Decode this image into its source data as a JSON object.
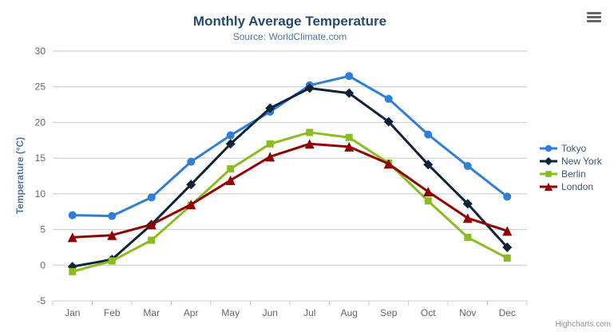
{
  "chart_data": {
    "type": "line",
    "title": "Monthly Average Temperature",
    "subtitle": "Source: WorldClimate.com",
    "xlabel": "",
    "ylabel": "Temperature (°C)",
    "ylim": [
      -5,
      30
    ],
    "ytick_step": 5,
    "grid": true,
    "legend_position": "right",
    "categories": [
      "Jan",
      "Feb",
      "Mar",
      "Apr",
      "May",
      "Jun",
      "Jul",
      "Aug",
      "Sep",
      "Oct",
      "Nov",
      "Dec"
    ],
    "series": [
      {
        "name": "Tokyo",
        "color": "#2f7ed8",
        "marker": "circle",
        "values": [
          7.0,
          6.9,
          9.5,
          14.5,
          18.2,
          21.5,
          25.2,
          26.5,
          23.3,
          18.3,
          13.9,
          9.6
        ]
      },
      {
        "name": "New York",
        "color": "#0d233a",
        "marker": "diamond",
        "values": [
          -0.2,
          0.8,
          5.7,
          11.3,
          17.0,
          22.0,
          24.8,
          24.1,
          20.1,
          14.1,
          8.6,
          2.5
        ]
      },
      {
        "name": "Berlin",
        "color": "#8bbc21",
        "marker": "square",
        "values": [
          -0.9,
          0.6,
          3.5,
          8.4,
          13.5,
          17.0,
          18.6,
          17.9,
          14.3,
          9.0,
          3.9,
          1.0
        ]
      },
      {
        "name": "London",
        "color": "#910000",
        "marker": "triangle",
        "values": [
          3.9,
          4.2,
          5.7,
          8.5,
          11.9,
          15.2,
          17.0,
          16.6,
          14.2,
          10.3,
          6.6,
          4.8
        ]
      }
    ]
  },
  "colors": {
    "background": "#ffffff",
    "title": "#274b6d",
    "subtitle": "#4d759e",
    "axis_title": "#4d759e",
    "axis_labels": "#666666",
    "legend_text": "#3e576f",
    "gridline": "#c8c8c8",
    "axis_line": "#c0d0e0",
    "credit": "#909090",
    "menu_icon": "#666666"
  },
  "credit": {
    "label": "Highcharts.com"
  }
}
